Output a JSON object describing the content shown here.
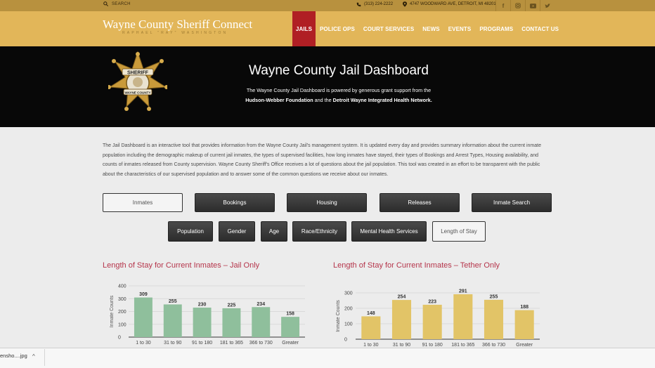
{
  "utility": {
    "search_label": "SEARCH",
    "phone": "(313) 224-2222",
    "address": "4747 WOODWARD AVE, DETROIT, MI 48201",
    "social_icons": [
      "facebook-icon",
      "instagram-icon",
      "youtube-icon",
      "twitter-icon"
    ]
  },
  "header": {
    "brand": "Wayne County Sheriff Connect",
    "brand_sub": "RAPHAEL \"RAY\" WASHINGTON",
    "nav": [
      "JAILS",
      "POLICE OPS",
      "COURT SERVICES",
      "NEWS",
      "EVENTS",
      "PROGRAMS",
      "CONTACT US"
    ],
    "active_nav": "JAILS",
    "colors": {
      "gold": "#e2b659",
      "active": "#b01f24"
    }
  },
  "hero": {
    "badge_top_text": "SHERIFF",
    "badge_bottom_text": "WAYNE COUNTY",
    "title": "Wayne County Jail Dashboard",
    "line1": "The Wayne County Jail Dashboard is powered by generous grant support from the",
    "line2_org1": "Hudson-Webber Foundation",
    "line2_mid": " and the ",
    "line2_org2": "Detroit Wayne Integrated Health Network."
  },
  "intro": {
    "text": "The Jail Dashboard is an interactive tool that provides information from the Wayne County Jail's management system. It is updated every day and provides summary information about the current inmate population including the demographic makeup of current jail inmates, the types of supervised facilities, how long inmates have stayed, their types of Bookings and Arrest Types, Housing availability, and counts of inmates released from County supervision. Wayne County Sheriff's Office receives a lot of questions about the jail population. This tool was created in an effort to be transparent with the public about the characteristics of our supervised population and to answer some of the common questions we receive about our inmates."
  },
  "tabs_primary": [
    {
      "label": "Inmates",
      "selected": true
    },
    {
      "label": "Bookings",
      "selected": false
    },
    {
      "label": "Housing",
      "selected": false
    },
    {
      "label": "Releases",
      "selected": false
    },
    {
      "label": "Inmate Search",
      "selected": false
    }
  ],
  "tabs_secondary": [
    {
      "label": "Population",
      "selected": false
    },
    {
      "label": "Gender",
      "selected": false
    },
    {
      "label": "Age",
      "selected": false
    },
    {
      "label": "Race/Ethnicity",
      "selected": false
    },
    {
      "label": "Mental Health Services",
      "selected": false
    },
    {
      "label": "Length of Stay",
      "selected": true
    }
  ],
  "chart_data": [
    {
      "type": "bar",
      "title": "Length of Stay for Current Inmates – Jail Only",
      "ylabel": "Inmate Counts",
      "xlabel": "",
      "categories": [
        "1 to 30",
        "31 to 90",
        "91 to 180",
        "181 to 365",
        "366 to 730",
        "Greater"
      ],
      "values": [
        309,
        255,
        230,
        225,
        234,
        158
      ],
      "ylim": [
        0,
        400
      ],
      "yticks": [
        0,
        100,
        200,
        300,
        400
      ],
      "color": "#8fbf9c",
      "grid": true
    },
    {
      "type": "bar",
      "title": "Length of Stay for Current Inmates – Tether Only",
      "ylabel": "Inmate Counts",
      "xlabel": "",
      "categories": [
        "1 to 30",
        "31 to 90",
        "91 to 180",
        "181 to 365",
        "366 to 730",
        "Greater"
      ],
      "values": [
        148,
        254,
        223,
        291,
        255,
        188
      ],
      "ylim": [
        0,
        300
      ],
      "yticks": [
        0,
        100,
        200,
        300
      ],
      "color": "#e2c467",
      "grid": true
    }
  ],
  "download": {
    "filename": "ensho....jpg"
  }
}
